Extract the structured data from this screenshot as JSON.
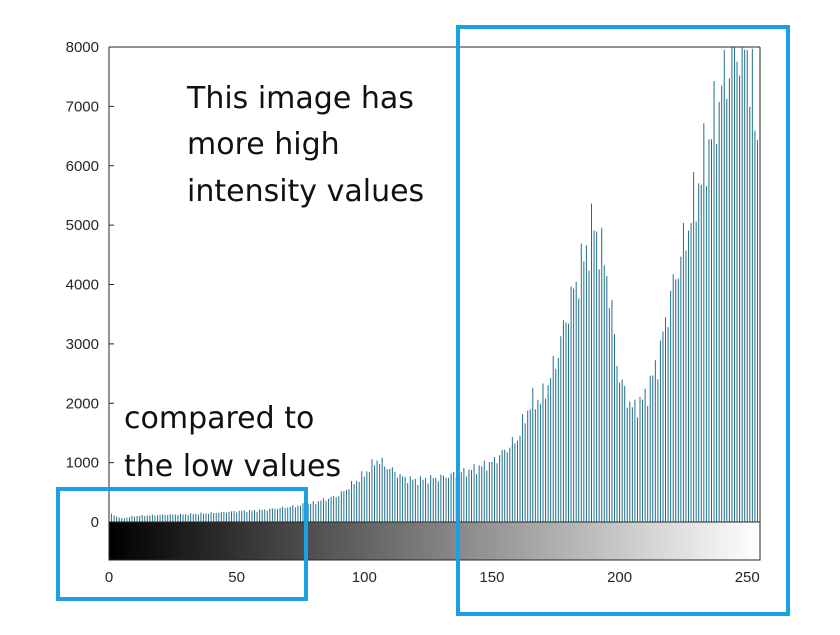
{
  "chart_data": {
    "type": "bar",
    "title": "",
    "xlabel": "",
    "ylabel": "",
    "xlim": [
      0,
      255
    ],
    "ylim": [
      0,
      8000
    ],
    "x_ticks": [
      "0",
      "50",
      "100",
      "150",
      "200",
      "250"
    ],
    "y_ticks": [
      "0",
      "1000",
      "2000",
      "3000",
      "4000",
      "5000",
      "6000",
      "7000",
      "8000"
    ],
    "grid": false,
    "legend": "none",
    "bar_color": "#1f6f8b",
    "colorbar": "grayscale",
    "x": [
      0,
      5,
      10,
      20,
      30,
      40,
      50,
      60,
      70,
      75,
      80,
      90,
      100,
      105,
      110,
      115,
      120,
      130,
      140,
      150,
      160,
      165,
      170,
      175,
      180,
      185,
      190,
      195,
      200,
      205,
      210,
      215,
      220,
      230,
      240,
      245,
      250,
      255
    ],
    "values": [
      150,
      60,
      100,
      120,
      130,
      150,
      180,
      200,
      250,
      280,
      320,
      450,
      800,
      1050,
      900,
      750,
      700,
      750,
      850,
      1000,
      1400,
      2000,
      2100,
      2700,
      3600,
      4300,
      5000,
      4200,
      2400,
      1900,
      2100,
      2700,
      3800,
      5500,
      7300,
      8000,
      8000,
      6000
    ]
  },
  "annotations": {
    "high_text": [
      "This image has",
      "more high",
      "intensity values"
    ],
    "low_text": [
      "compared to",
      "the low values"
    ],
    "box_color": "#1ba1e2"
  }
}
